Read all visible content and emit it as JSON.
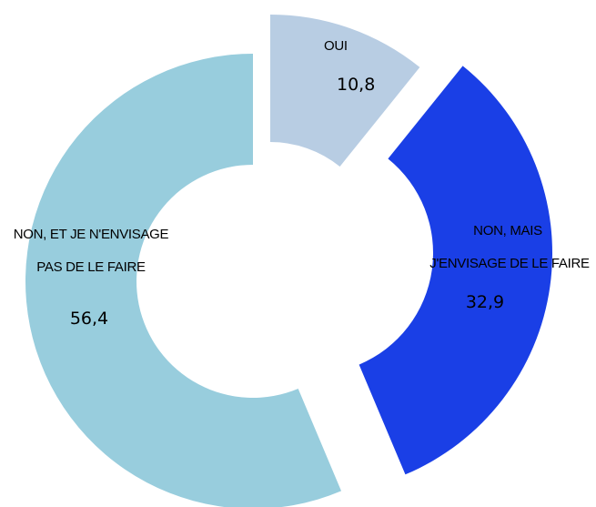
{
  "chart_data": {
    "type": "pie",
    "variant": "exploded-donut",
    "title": "",
    "categories": [
      "OUI",
      "NON, MAIS J'ENVISAGE DE LE FAIRE",
      "NON, ET  JE N'ENVISAGE PAS DE LE FAIRE"
    ],
    "values": [
      10.8,
      32.9,
      56.4
    ],
    "value_labels": [
      "10,8",
      "32,9",
      "56,4"
    ],
    "label_lines": [
      [
        "OUI"
      ],
      [
        "NON, MAIS",
        "J'ENVISAGE DE LE FAIRE"
      ],
      [
        "NON, ET  JE N'ENVISAGE",
        "PAS DE LE FAIRE"
      ]
    ],
    "colors": [
      "#b8cde3",
      "#1a3fe6",
      "#98cddd"
    ],
    "legend": "none",
    "grid": false
  }
}
